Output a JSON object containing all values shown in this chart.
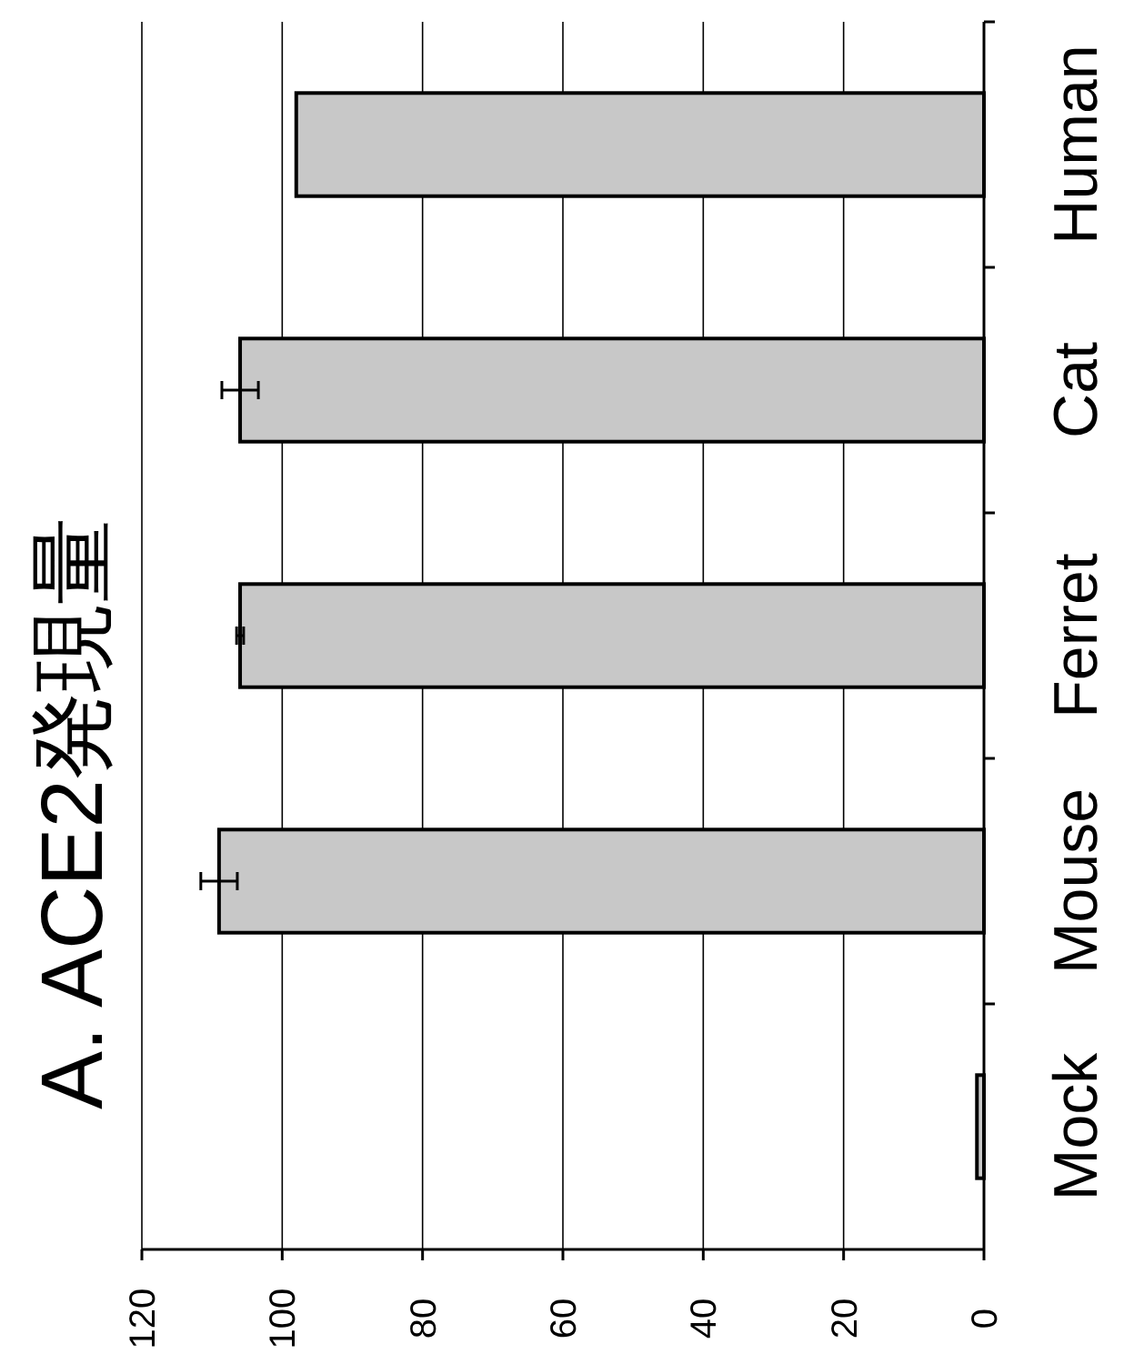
{
  "chart_data": {
    "type": "bar",
    "orientation": "horizontal",
    "title": "A. ACE2発現量",
    "categories": [
      "Human",
      "Cat",
      "Ferret",
      "Mouse",
      "Mock"
    ],
    "values": [
      98,
      106,
      106,
      109,
      1
    ],
    "errors": [
      null,
      2.6,
      0.5,
      2.6,
      null
    ],
    "color": "#c8c8c8",
    "xlim": [
      120,
      0
    ],
    "xticks": [
      120,
      100,
      80,
      60,
      40,
      20,
      0
    ],
    "grid": "x"
  }
}
